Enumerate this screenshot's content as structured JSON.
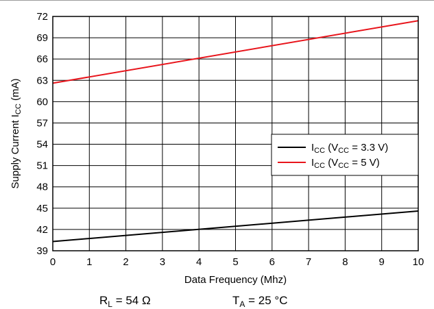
{
  "chart_data": {
    "type": "line",
    "title": "",
    "xlabel": "Data Frequency (Mhz)",
    "ylabel": {
      "text": "Supply Current I",
      "sub": "CC",
      "suffix": " (mA)"
    },
    "xlim": [
      0,
      10
    ],
    "ylim": [
      39,
      72
    ],
    "x_ticks": [
      0,
      1,
      2,
      3,
      4,
      5,
      6,
      7,
      8,
      9,
      10
    ],
    "y_ticks": [
      39,
      42,
      45,
      48,
      51,
      54,
      57,
      60,
      63,
      66,
      69,
      72
    ],
    "grid": true,
    "legend_position": "right",
    "series": [
      {
        "name": "ICC (VCC = 3.3 V)",
        "legend": {
          "main": "I",
          "sub": "CC",
          "mid": " (V",
          "sub2": "CC",
          "tail": " = 3.3 V)"
        },
        "color": "#000000",
        "x": [
          0,
          10
        ],
        "y": [
          40.3,
          44.6
        ]
      },
      {
        "name": "ICC (VCC = 5 V)",
        "legend": {
          "main": "I",
          "sub": "CC",
          "mid": " (V",
          "sub2": "CC",
          "tail": " = 5 V)"
        },
        "color": "#e8141b",
        "x": [
          0,
          10
        ],
        "y": [
          62.6,
          71.4
        ]
      }
    ],
    "annotations": [
      {
        "main": "R",
        "sub": "L",
        "tail": " = 54 Ω"
      },
      {
        "main": "T",
        "sub": "A",
        "tail": " = 25 °C"
      }
    ]
  }
}
